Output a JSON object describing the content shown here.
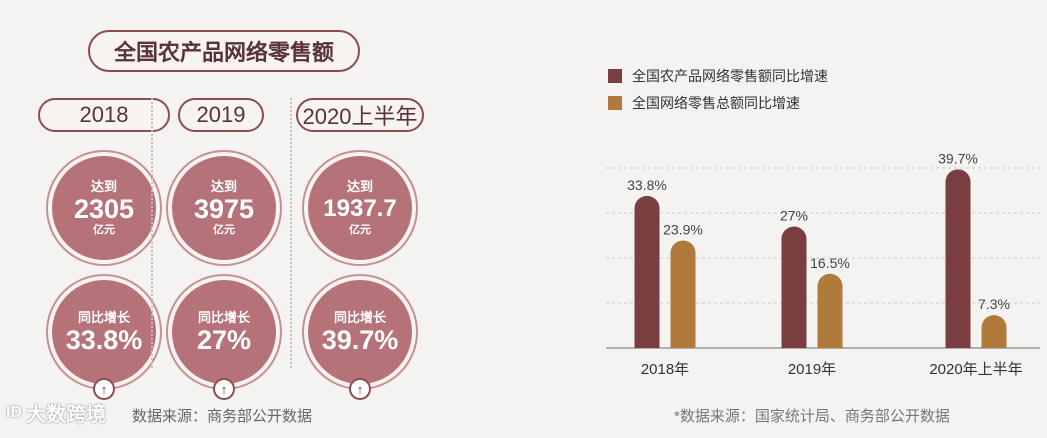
{
  "left": {
    "title": "全国农产品网络零售额",
    "columns": [
      {
        "year": "2018",
        "top": "达到",
        "value": "2305",
        "unit": "亿元",
        "growth_label": "同比增长",
        "growth": "33.8%"
      },
      {
        "year": "2019",
        "top": "达到",
        "value": "3975",
        "unit": "亿元",
        "growth_label": "同比增长",
        "growth": "27%"
      },
      {
        "year": "2020上半年",
        "top": "达到",
        "value": "1937.7",
        "unit": "亿元",
        "growth_label": "同比增长",
        "growth": "39.7%"
      }
    ],
    "arrow_icon": "arrow-up-icon",
    "source": "数据来源：商务部公开数据"
  },
  "watermark": {
    "text": "大数跨境",
    "logo": "ID"
  },
  "chart_data": {
    "type": "bar",
    "categories": [
      "2018年",
      "2019年",
      "2020年上半年"
    ],
    "series": [
      {
        "name": "全国农产品网络零售额同比增速",
        "color": "#7a3e40",
        "values": [
          33.8,
          27,
          39.7
        ],
        "labels": [
          "33.8%",
          "27%",
          "39.7%"
        ]
      },
      {
        "name": "全国网络零售总额同比增速",
        "color": "#b07a3b",
        "values": [
          23.9,
          16.5,
          7.3
        ],
        "labels": [
          "23.9%",
          "16.5%",
          "7.3%"
        ]
      }
    ],
    "ylim": [
      0,
      50
    ],
    "grid": true,
    "legend_position": "top-left",
    "source": "*数据来源：国家统计局、商务部公开数据"
  }
}
